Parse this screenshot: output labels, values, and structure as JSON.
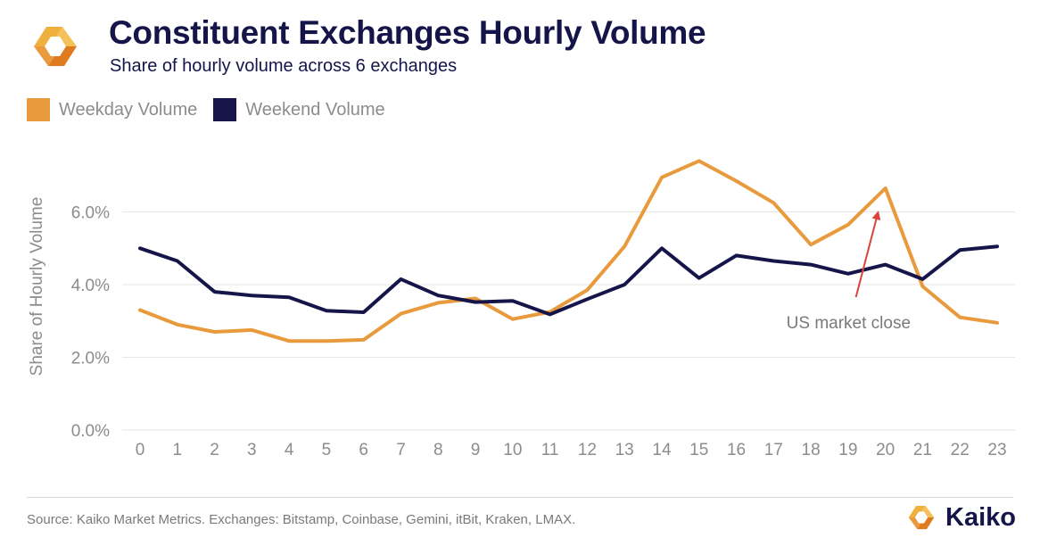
{
  "header": {
    "title": "Constituent Exchanges Hourly Volume",
    "subtitle": "Share of hourly volume across 6 exchanges"
  },
  "legend": {
    "weekday_label": "Weekday Volume",
    "weekend_label": "Weekend Volume"
  },
  "colors": {
    "weekday": "#e89a3c",
    "weekend": "#16154a",
    "annotation_arrow": "#d9443a",
    "grid": "#e6e6e6",
    "tick_text": "#8c8c8c"
  },
  "chart_data": {
    "type": "line",
    "ylabel": "Share of Hourly Volume",
    "xlabel": "",
    "categories": [
      "0",
      "1",
      "2",
      "3",
      "4",
      "5",
      "6",
      "7",
      "8",
      "9",
      "10",
      "11",
      "12",
      "13",
      "14",
      "15",
      "16",
      "17",
      "18",
      "19",
      "20",
      "21",
      "22",
      "23"
    ],
    "ylim": [
      0,
      8
    ],
    "y_ticks": [
      0,
      2,
      4,
      6
    ],
    "y_tick_labels": [
      "0.0%",
      "2.0%",
      "4.0%",
      "6.0%"
    ],
    "grid": true,
    "series": [
      {
        "name": "Weekday Volume",
        "values": [
          3.3,
          2.9,
          2.7,
          2.75,
          2.45,
          2.45,
          2.48,
          3.2,
          3.5,
          3.62,
          3.05,
          3.25,
          3.85,
          5.05,
          6.95,
          7.4,
          6.85,
          6.25,
          5.1,
          5.65,
          6.65,
          3.95,
          3.1,
          2.95
        ]
      },
      {
        "name": "Weekend Volume",
        "values": [
          5.0,
          4.65,
          3.8,
          3.7,
          3.65,
          3.28,
          3.24,
          4.15,
          3.7,
          3.52,
          3.55,
          3.18,
          3.6,
          4.0,
          5.0,
          4.18,
          4.8,
          4.65,
          4.55,
          4.3,
          4.55,
          4.15,
          4.95,
          5.05
        ]
      }
    ],
    "annotations": [
      {
        "text": "US market close",
        "target_x": 20,
        "target_series": "Weekday Volume"
      }
    ]
  },
  "footer": {
    "source": "Source: Kaiko Market Metrics. Exchanges: Bitstamp, Coinbase, Gemini, itBit, Kraken, LMAX.",
    "brand": "Kaiko"
  }
}
